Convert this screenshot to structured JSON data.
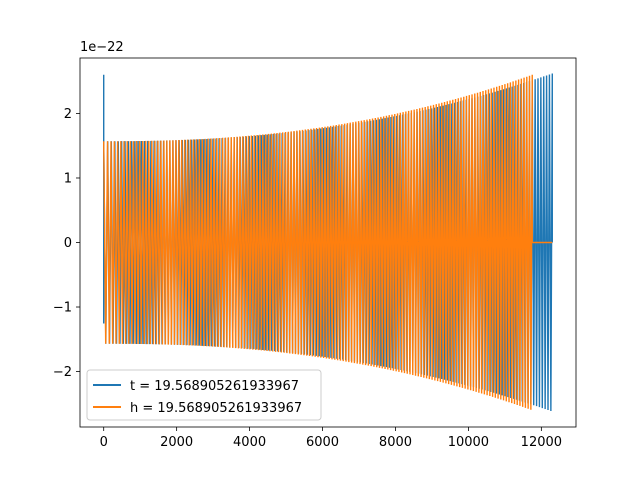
{
  "chart_data": {
    "type": "line",
    "title": "",
    "xlabel": "",
    "ylabel": "",
    "offset_label": "1e−22",
    "xlim": [
      -650,
      12950
    ],
    "ylim": [
      -2.86,
      2.86
    ],
    "xticks": [
      0,
      2000,
      4000,
      6000,
      8000,
      10000,
      12000
    ],
    "xtick_labels": [
      "0",
      "2000",
      "4000",
      "6000",
      "8000",
      "10000",
      "12000"
    ],
    "yticks": [
      -2,
      -1,
      0,
      1,
      2
    ],
    "ytick_labels": [
      "−2",
      "−1",
      "0",
      "1",
      "2"
    ],
    "grid": false,
    "legend_position": "lower-left",
    "series": [
      {
        "name": "t = 19.568905261933967",
        "color": "#1f77b4",
        "x_start": 0,
        "x_end": 12300,
        "spike_at_start": 2.6,
        "amplitude_start": 1.57,
        "amplitude_end": 2.62,
        "cycles": 150,
        "note_end_value": 0
      },
      {
        "name": "h = 19.568905261933967",
        "color": "#ff7f0e",
        "x_start": 0,
        "x_end": 11750,
        "amplitude_start": 1.57,
        "amplitude_end": 2.6,
        "cycles": 150,
        "flat_after_end_to": 12300,
        "flat_value": 0
      }
    ]
  }
}
